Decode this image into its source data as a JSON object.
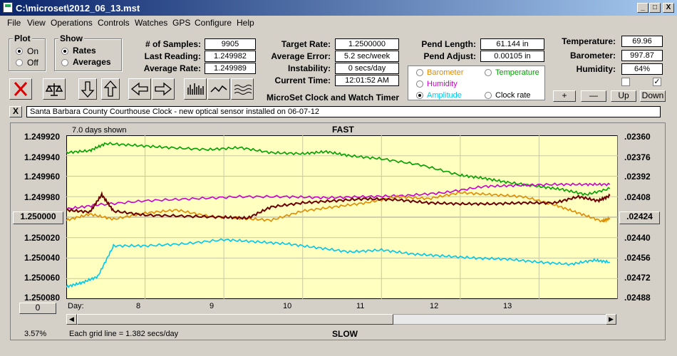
{
  "window": {
    "title": "C:\\microset\\2012_06_13.mst",
    "min": "_",
    "max": "□",
    "close": "X"
  },
  "menu": [
    "File",
    "View",
    "Operations",
    "Controls",
    "Watches",
    "GPS",
    "Configure",
    "Help"
  ],
  "plot": {
    "label": "Plot",
    "on": "On",
    "off": "Off",
    "selected": "on"
  },
  "show": {
    "label": "Show",
    "rates": "Rates",
    "averages": "Averages",
    "selected": "rates"
  },
  "stats": {
    "samples_label": "# of Samples:",
    "samples": "9905",
    "last_label": "Last Reading:",
    "last": "1.249982",
    "avgrate_label": "Average Rate:",
    "avgrate": "1.249989",
    "target_label": "Target Rate:",
    "target": "1.2500000",
    "avgerr_label": "Average Error:",
    "avgerr": "5.2 sec/week",
    "instab_label": "Instability:",
    "instab": "0 secs/day",
    "time_label": "Current Time:",
    "time": "12:01:52 AM",
    "pendlen_label": "Pend Length:",
    "pendlen": "61.144 in",
    "pendadj_label": "Pend Adjust:",
    "pendadj": "0.00105 in",
    "temp_label": "Temperature:",
    "temp": "69.96",
    "baro_label": "Barometer:",
    "baro": "997.87",
    "hum_label": "Humidity:",
    "hum": "64%"
  },
  "app_name": "MicroSet Clock and Watch Timer",
  "sensor_options": [
    {
      "label": "Barometer",
      "color": "#e08a00",
      "selected": false
    },
    {
      "label": "Temperature",
      "color": "#00a000",
      "selected": false
    },
    {
      "label": "Humidity",
      "color": "#cc00cc",
      "selected": false
    },
    {
      "label": "Amplitude",
      "color": "#00c8e8",
      "selected": true
    },
    {
      "label": "Clock rate",
      "color": "#000000",
      "selected": false
    }
  ],
  "checkboxes": [
    false,
    true
  ],
  "scale_buttons": {
    "plus": "+",
    "minus": "—",
    "up": "Up",
    "down": "Down"
  },
  "toolbar_icons": [
    "stop-icon",
    "balance-scale-icon",
    "arrow-down-icon",
    "arrow-up-icon",
    "arrow-left-icon",
    "arrow-right-icon",
    "bar-graph-icon",
    "line-graph-icon",
    "wave-graph-icon"
  ],
  "note": {
    "close": "X",
    "text": "Santa Barbara County Courthouse Clock - new optical sensor installed on 06-07-12"
  },
  "chart_panel": {
    "days_shown": "7.0 days shown",
    "fast": "FAST",
    "slow": "SLOW",
    "left_button": "1.250000",
    "right_button": ".02424",
    "zero_button": "0",
    "percent": "3.57%",
    "grid_note": "Each grid line = 1.382 secs/day",
    "day_label": "Day:"
  },
  "chart_data": {
    "type": "line",
    "x_label": "Day:",
    "x_ticks": [
      "8",
      "9",
      "10",
      "11",
      "12",
      "13"
    ],
    "x_range_days": [
      7.0,
      14.0
    ],
    "y_left_ticks": [
      "1.249920",
      "1.249940",
      "1.249960",
      "1.249980",
      "1.250000",
      "1.250020",
      "1.250040",
      "1.250060",
      "1.250080"
    ],
    "y_right_ticks": [
      ".02360",
      ".02376",
      ".02392",
      ".02408",
      ".02424",
      ".02440",
      ".02456",
      ".02472",
      ".02488"
    ],
    "y_left_range": [
      1.24992,
      1.25008
    ],
    "series": [
      {
        "name": "Temperature",
        "color": "#00a000",
        "x": [
          7.0,
          7.3,
          7.5,
          7.9,
          8.3,
          8.8,
          9.2,
          9.6,
          10.0,
          10.3,
          10.6,
          11.0,
          11.5,
          12.0,
          12.3,
          12.6,
          13.0,
          13.3,
          13.6,
          13.9
        ],
        "y": [
          1.249937,
          1.249935,
          1.249928,
          1.24993,
          1.249932,
          1.249934,
          1.249932,
          1.249937,
          1.249938,
          1.249936,
          1.24994,
          1.249943,
          1.249949,
          1.249959,
          1.249962,
          1.249966,
          1.24997,
          1.249973,
          1.249978,
          1.249972
        ]
      },
      {
        "name": "Humidity",
        "color": "#cc00cc",
        "x": [
          7.0,
          7.4,
          8.0,
          8.6,
          9.2,
          9.8,
          10.3,
          10.8,
          11.3,
          11.8,
          12.3,
          12.7,
          13.2,
          13.6,
          13.9
        ],
        "y": [
          1.249992,
          1.249988,
          1.249984,
          1.249982,
          1.24998,
          1.24998,
          1.249981,
          1.24998,
          1.249979,
          1.249976,
          1.24997,
          1.249969,
          1.249968,
          1.249968,
          1.249968
        ]
      },
      {
        "name": "Barometer",
        "color": "#e08a00",
        "x": [
          7.0,
          7.3,
          7.6,
          8.0,
          8.4,
          8.8,
          9.2,
          9.6,
          10.0,
          10.4,
          10.8,
          11.2,
          11.6,
          12.0,
          12.4,
          12.8,
          13.2,
          13.5,
          13.8,
          13.9
        ],
        "y": [
          1.250003,
          1.249997,
          1.250002,
          1.249996,
          1.249993,
          1.249999,
          1.250001,
          1.250003,
          1.249994,
          1.24999,
          1.249986,
          1.24998,
          1.249982,
          1.249976,
          1.249978,
          1.24998,
          1.249988,
          1.249996,
          1.250004,
          1.250001
        ]
      },
      {
        "name": "Clock rate",
        "color": "#6b0000",
        "x": [
          7.0,
          7.3,
          7.45,
          7.6,
          8.0,
          8.5,
          9.0,
          9.3,
          9.6,
          10.0,
          10.4,
          10.8,
          11.2,
          11.6,
          12.0,
          12.4,
          12.8,
          13.2,
          13.5,
          13.75,
          13.9
        ],
        "y": [
          1.249993,
          1.249995,
          1.249978,
          1.249994,
          1.249998,
          1.249999,
          1.25,
          1.250001,
          1.24999,
          1.249986,
          1.249984,
          1.249982,
          1.249983,
          1.249986,
          1.249987,
          1.249987,
          1.249986,
          1.249986,
          1.24998,
          1.249984,
          1.249979
        ]
      },
      {
        "name": "Amplitude",
        "color": "#00c8e8",
        "x": [
          7.0,
          7.2,
          7.4,
          7.6,
          8.0,
          8.5,
          9.0,
          9.4,
          9.8,
          10.2,
          10.6,
          11.0,
          11.4,
          11.8,
          12.2,
          12.6,
          13.0,
          13.4,
          13.7,
          13.9
        ],
        "y": [
          1.250068,
          1.250064,
          1.250058,
          1.250028,
          1.250028,
          1.250026,
          1.250022,
          1.250024,
          1.250026,
          1.25003,
          1.250034,
          1.250032,
          1.250036,
          1.250038,
          1.25004,
          1.250041,
          1.250044,
          1.250046,
          1.250042,
          1.250044
        ]
      }
    ]
  }
}
